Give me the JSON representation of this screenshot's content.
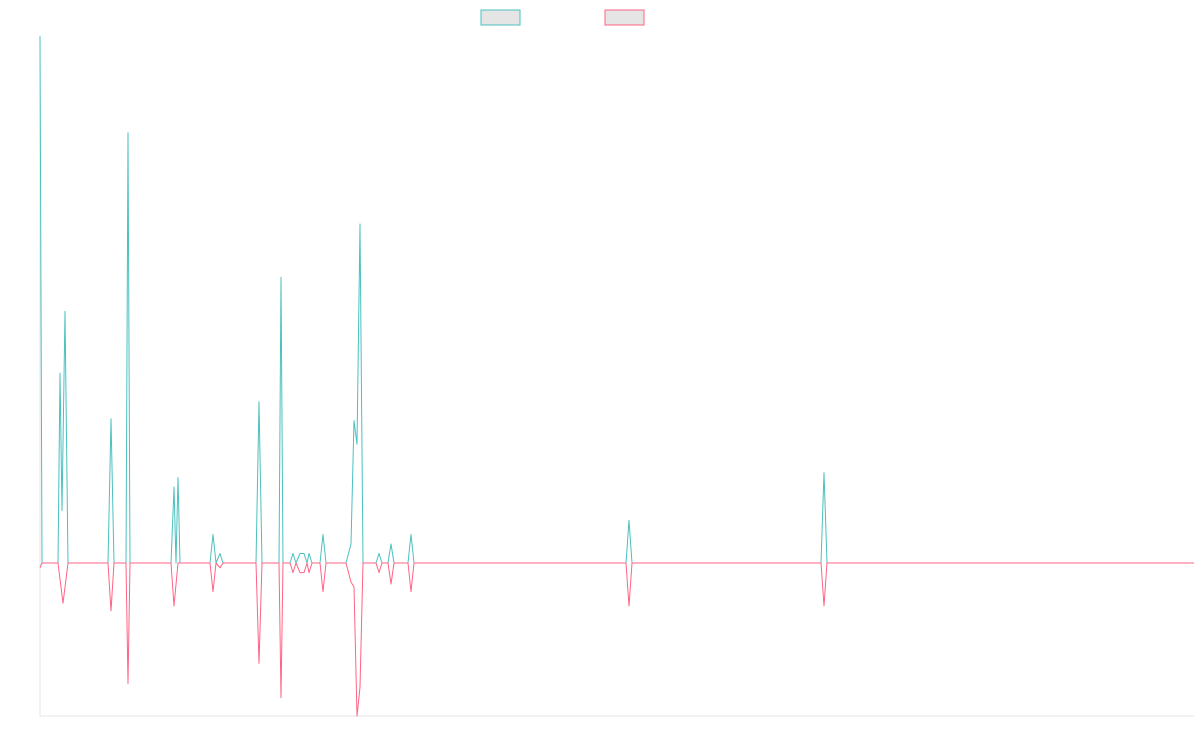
{
  "chart_data": {
    "type": "line",
    "title": "",
    "xlabel": "",
    "ylabel": "",
    "grid": false,
    "legend_position": "top-center",
    "y_range": [
      -160,
      555
    ],
    "x_range": [
      0,
      1154
    ],
    "series": [
      {
        "color": "#4bc0c0",
        "legend_fill": "#e5e5e5",
        "points": [
          [
            0,
            555
          ],
          [
            2,
            0
          ],
          [
            18,
            0
          ],
          [
            20,
            200
          ],
          [
            22,
            55
          ],
          [
            25,
            265
          ],
          [
            28,
            0
          ],
          [
            68,
            0
          ],
          [
            71,
            152
          ],
          [
            74,
            0
          ],
          [
            86,
            0
          ],
          [
            88,
            453
          ],
          [
            90,
            0
          ],
          [
            131,
            0
          ],
          [
            134,
            80
          ],
          [
            136,
            0
          ],
          [
            138,
            90
          ],
          [
            140,
            0
          ],
          [
            170,
            0
          ],
          [
            173,
            30
          ],
          [
            176,
            0
          ],
          [
            180,
            10
          ],
          [
            183,
            0
          ],
          [
            216,
            0
          ],
          [
            219,
            170
          ],
          [
            222,
            0
          ],
          [
            239,
            0
          ],
          [
            241,
            301
          ],
          [
            243,
            0
          ],
          [
            250,
            0
          ],
          [
            253,
            10
          ],
          [
            256,
            0
          ],
          [
            260,
            10
          ],
          [
            264,
            10
          ],
          [
            267,
            0
          ],
          [
            269,
            10
          ],
          [
            272,
            0
          ],
          [
            280,
            0
          ],
          [
            283,
            30
          ],
          [
            286,
            0
          ],
          [
            306,
            0
          ],
          [
            311,
            20
          ],
          [
            314,
            150
          ],
          [
            317,
            125
          ],
          [
            320,
            357
          ],
          [
            323,
            0
          ],
          [
            336,
            0
          ],
          [
            339,
            10
          ],
          [
            342,
            0
          ],
          [
            348,
            0
          ],
          [
            351,
            20
          ],
          [
            354,
            0
          ],
          [
            368,
            0
          ],
          [
            371,
            30
          ],
          [
            374,
            0
          ],
          [
            586,
            0
          ],
          [
            589,
            45
          ],
          [
            592,
            0
          ],
          [
            781,
            0
          ],
          [
            784,
            95
          ],
          [
            787,
            0
          ],
          [
            1154,
            0
          ]
        ]
      },
      {
        "color": "#ff6384",
        "legend_fill": "#e5e5e5",
        "points": [
          [
            0,
            -5
          ],
          [
            2,
            0
          ],
          [
            18,
            0
          ],
          [
            23,
            -42
          ],
          [
            28,
            0
          ],
          [
            68,
            0
          ],
          [
            71,
            -50
          ],
          [
            74,
            0
          ],
          [
            86,
            0
          ],
          [
            88,
            -126
          ],
          [
            90,
            0
          ],
          [
            131,
            0
          ],
          [
            134,
            -45
          ],
          [
            138,
            0
          ],
          [
            170,
            0
          ],
          [
            173,
            -30
          ],
          [
            176,
            0
          ],
          [
            180,
            -5
          ],
          [
            183,
            0
          ],
          [
            216,
            0
          ],
          [
            219,
            -105
          ],
          [
            222,
            0
          ],
          [
            239,
            0
          ],
          [
            241,
            -141
          ],
          [
            243,
            0
          ],
          [
            250,
            0
          ],
          [
            253,
            -10
          ],
          [
            256,
            0
          ],
          [
            260,
            -10
          ],
          [
            264,
            -10
          ],
          [
            267,
            0
          ],
          [
            269,
            -10
          ],
          [
            272,
            0
          ],
          [
            280,
            0
          ],
          [
            283,
            -30
          ],
          [
            286,
            0
          ],
          [
            306,
            0
          ],
          [
            311,
            -20
          ],
          [
            314,
            -25
          ],
          [
            317,
            -160
          ],
          [
            320,
            -130
          ],
          [
            323,
            0
          ],
          [
            336,
            0
          ],
          [
            339,
            -10
          ],
          [
            342,
            0
          ],
          [
            348,
            0
          ],
          [
            351,
            -22
          ],
          [
            354,
            0
          ],
          [
            368,
            0
          ],
          [
            371,
            -30
          ],
          [
            374,
            0
          ],
          [
            586,
            0
          ],
          [
            589,
            -45
          ],
          [
            592,
            0
          ],
          [
            781,
            0
          ],
          [
            784,
            -45
          ],
          [
            787,
            0
          ],
          [
            1154,
            0
          ]
        ]
      }
    ]
  }
}
